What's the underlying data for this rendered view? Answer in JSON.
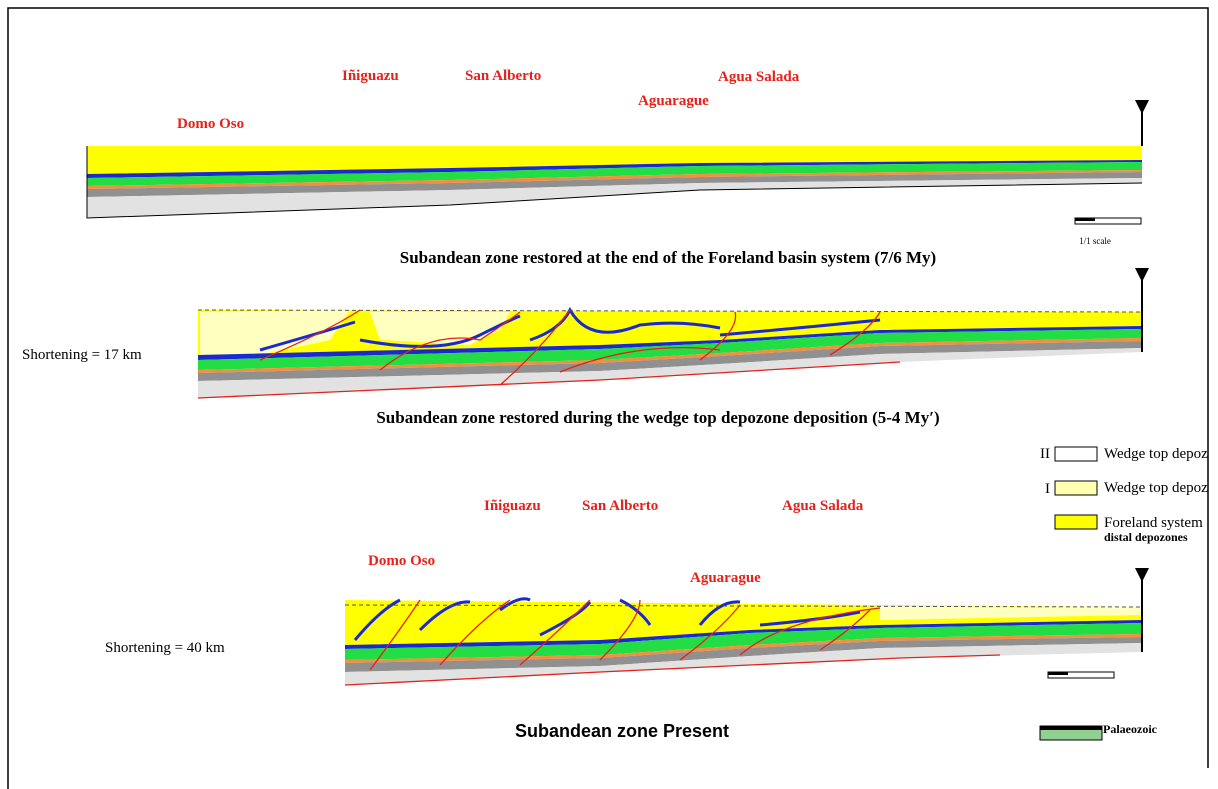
{
  "section_1": {
    "labels": [
      "Domo Oso",
      "Iñiguazu",
      "San Alberto",
      "Aguarague",
      "Agua Salada"
    ],
    "scale": "1/1 scale",
    "caption": "Subandean zone restored at the end of the Foreland basin system (7/6 My)"
  },
  "section_2": {
    "shortening": "Shortening = 17 km",
    "caption": "Subandean zone restored during the wedge top depozone deposition (5-4 My′)"
  },
  "legend": {
    "items": [
      {
        "mark": "II",
        "label": "Wedge top depoz"
      },
      {
        "mark": "I",
        "label": "Wedge top depoz"
      },
      {
        "label": "Foreland system",
        "sublabel": "distal depozones"
      }
    ],
    "palaeozoic": "Palaeozoic"
  },
  "section_3": {
    "labels": [
      "Domo Oso",
      "Iñiguazu",
      "San Alberto",
      "Aguarague",
      "Agua Salada"
    ],
    "shortening": "Shortening = 40 km",
    "caption": "Subandean zone Present"
  }
}
